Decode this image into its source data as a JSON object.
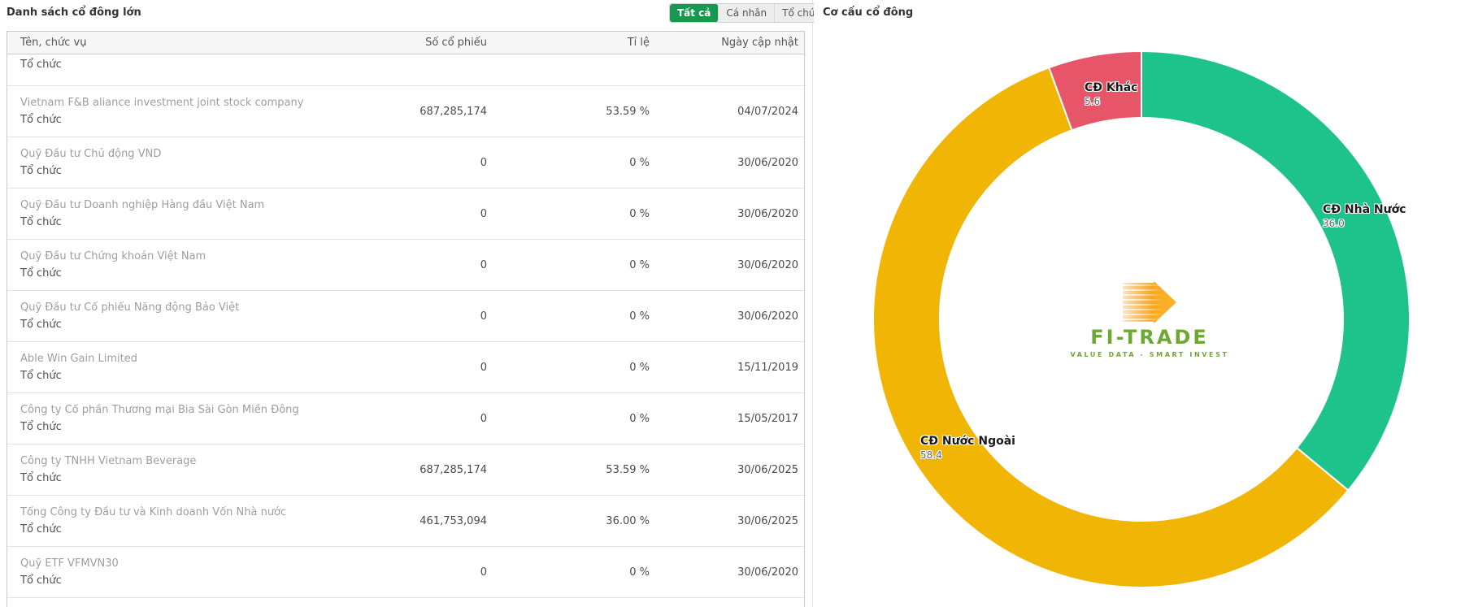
{
  "left_panel": {
    "title": "Danh sách cổ đông lớn",
    "filters": [
      {
        "label": "Tất cả",
        "active": true
      },
      {
        "label": "Cá nhân",
        "active": false
      },
      {
        "label": "Tổ chức",
        "active": false
      }
    ],
    "table": {
      "columns": [
        "Tên, chức vụ",
        "Số cổ phiếu",
        "Tỉ lệ",
        "Ngày cập nhật"
      ],
      "partial_row_label": "Tổ chức",
      "rows": [
        {
          "name": "Vietnam F&B aliance investment joint stock company",
          "type": "Tổ chức",
          "shares": "687,285,174",
          "ratio": "53.59 %",
          "date": "04/07/2024"
        },
        {
          "name": "Quỹ Đầu tư Chủ động VND",
          "type": "Tổ chức",
          "shares": "0",
          "ratio": "0 %",
          "date": "30/06/2020"
        },
        {
          "name": "Quỹ Đầu tư Doanh nghiệp Hàng đầu Việt Nam",
          "type": "Tổ chức",
          "shares": "0",
          "ratio": "0 %",
          "date": "30/06/2020"
        },
        {
          "name": "Quỹ Đầu tư Chứng khoán Việt Nam",
          "type": "Tổ chức",
          "shares": "0",
          "ratio": "0 %",
          "date": "30/06/2020"
        },
        {
          "name": "Quỹ Đầu tư Cổ phiếu Năng động Bảo Việt",
          "type": "Tổ chức",
          "shares": "0",
          "ratio": "0 %",
          "date": "30/06/2020"
        },
        {
          "name": "Able Win Gain Limited",
          "type": "Tổ chức",
          "shares": "0",
          "ratio": "0 %",
          "date": "15/11/2019"
        },
        {
          "name": "Công ty Cổ phần Thương mại Bia Sài Gòn Miền Đông",
          "type": "Tổ chức",
          "shares": "0",
          "ratio": "0 %",
          "date": "15/05/2017"
        },
        {
          "name": "Công ty TNHH Vietnam Beverage",
          "type": "Tổ chức",
          "shares": "687,285,174",
          "ratio": "53.59 %",
          "date": "30/06/2025"
        },
        {
          "name": "Tổng Công ty Đầu tư và Kinh doanh Vốn Nhà nước",
          "type": "Tổ chức",
          "shares": "461,753,094",
          "ratio": "36.00 %",
          "date": "30/06/2025"
        },
        {
          "name": "Quỹ ETF VFMVN30",
          "type": "Tổ chức",
          "shares": "0",
          "ratio": "0 %",
          "date": "30/06/2020"
        }
      ]
    }
  },
  "right_panel": {
    "title": "Cơ cấu cổ đông",
    "logo": {
      "text": "FI-TRADE",
      "tagline": "VALUE DATA - SMART INVEST"
    }
  },
  "chart_data": {
    "type": "pie",
    "donut": true,
    "title": "Cơ cấu cổ đông",
    "start_angle_deg": 0,
    "direction": "clockwise",
    "legend": "none",
    "labels": "on-slice",
    "slices": [
      {
        "label": "CĐ Nhà Nước",
        "value": 36.0,
        "display": "36.0",
        "color": "#1ec28b"
      },
      {
        "label": "CĐ Nước Ngoài",
        "value": 58.4,
        "display": "58.4",
        "color": "#f0b505"
      },
      {
        "label": "CĐ Khác",
        "value": 5.6,
        "display": "5.6",
        "color": "#e75568"
      }
    ]
  },
  "colors": {
    "filter_active_bg": "#18984f",
    "slice_green": "#1ec28b",
    "slice_yellow": "#f0b505",
    "slice_red": "#e75568",
    "logo_green": "#6ca832",
    "logo_orange": "#f6a21e"
  }
}
